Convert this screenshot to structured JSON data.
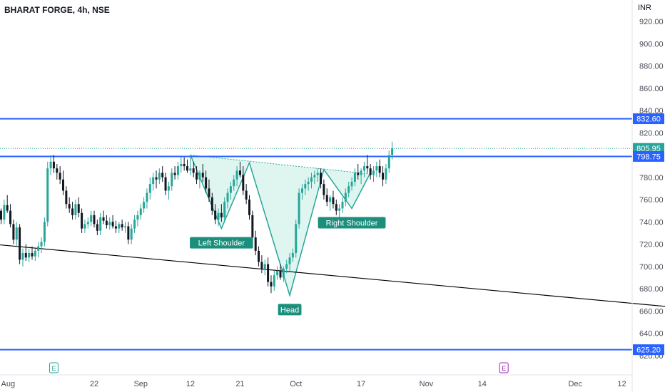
{
  "chart_title": "BHARAT FORGE, 4h, NSE",
  "currency_label": "INR",
  "colors": {
    "up": "#26a69a",
    "down": "#131722",
    "level_line": "#2962ff",
    "trend_line": "#000000",
    "pattern_fill": "#d4f1ea",
    "pattern_stroke": "#26a69a",
    "label_bg": "#1b8f7c"
  },
  "chart_data": {
    "type": "candlestick",
    "title": "BHARAT FORGE, 4h, NSE",
    "ylabel": "INR",
    "ylim": [
      610,
      928
    ],
    "y_ticks": [
      620,
      640,
      660,
      680,
      700,
      720,
      740,
      760,
      780,
      800,
      820,
      840,
      860,
      880,
      900,
      920
    ],
    "y_tick_labels": [
      "620.00",
      "640.00",
      "660.00",
      "680.00",
      "700.00",
      "720.00",
      "740.00",
      "760.00",
      "780.00",
      "800.00",
      "820.00",
      "840.00",
      "860.00",
      "880.00",
      "900.00",
      "920.00"
    ],
    "x_ticks": [
      {
        "label": "Aug",
        "bar": 0
      },
      {
        "label": "22",
        "bar": 30
      },
      {
        "label": "Sep",
        "bar": 45
      },
      {
        "label": "12",
        "bar": 61
      },
      {
        "label": "21",
        "bar": 77
      },
      {
        "label": "Oct",
        "bar": 95
      },
      {
        "label": "17",
        "bar": 116
      },
      {
        "label": "Nov",
        "bar": 137
      },
      {
        "label": "14",
        "bar": 155
      },
      {
        "label": "Dec",
        "bar": 185
      },
      {
        "label": "12",
        "bar": 200
      }
    ],
    "candles": [
      [
        750,
        752,
        738,
        742
      ],
      [
        742,
        760,
        738,
        755
      ],
      [
        755,
        764,
        748,
        750
      ],
      [
        750,
        756,
        735,
        738
      ],
      [
        738,
        742,
        720,
        724
      ],
      [
        724,
        740,
        718,
        735
      ],
      [
        735,
        738,
        702,
        706
      ],
      [
        706,
        716,
        700,
        712
      ],
      [
        712,
        720,
        705,
        708
      ],
      [
        708,
        716,
        704,
        712
      ],
      [
        712,
        718,
        706,
        709
      ],
      [
        709,
        716,
        705,
        714
      ],
      [
        714,
        722,
        708,
        718
      ],
      [
        718,
        726,
        712,
        722
      ],
      [
        722,
        744,
        718,
        740
      ],
      [
        740,
        794,
        736,
        788
      ],
      [
        788,
        800,
        782,
        794
      ],
      [
        794,
        800,
        784,
        788
      ],
      [
        788,
        792,
        778,
        784
      ],
      [
        784,
        790,
        774,
        778
      ],
      [
        778,
        786,
        764,
        768
      ],
      [
        768,
        772,
        752,
        756
      ],
      [
        756,
        762,
        748,
        752
      ],
      [
        752,
        758,
        742,
        746
      ],
      [
        746,
        760,
        742,
        756
      ],
      [
        756,
        762,
        744,
        748
      ],
      [
        748,
        752,
        730,
        734
      ],
      [
        734,
        742,
        730,
        738
      ],
      [
        738,
        744,
        734,
        740
      ],
      [
        740,
        750,
        736,
        746
      ],
      [
        746,
        750,
        735,
        738
      ],
      [
        738,
        742,
        728,
        732
      ],
      [
        732,
        748,
        728,
        744
      ],
      [
        744,
        750,
        738,
        741
      ],
      [
        741,
        746,
        734,
        737
      ],
      [
        737,
        744,
        733,
        740
      ],
      [
        740,
        746,
        734,
        736
      ],
      [
        736,
        741,
        730,
        734
      ],
      [
        734,
        740,
        730,
        738
      ],
      [
        738,
        742,
        732,
        735
      ],
      [
        735,
        740,
        730,
        736
      ],
      [
        736,
        740,
        720,
        724
      ],
      [
        724,
        738,
        720,
        734
      ],
      [
        734,
        746,
        730,
        742
      ],
      [
        742,
        750,
        736,
        746
      ],
      [
        746,
        756,
        742,
        752
      ],
      [
        752,
        762,
        748,
        758
      ],
      [
        758,
        770,
        752,
        766
      ],
      [
        766,
        780,
        760,
        774
      ],
      [
        774,
        784,
        768,
        780
      ],
      [
        780,
        786,
        770,
        778
      ],
      [
        778,
        788,
        774,
        784
      ],
      [
        784,
        790,
        776,
        780
      ],
      [
        780,
        784,
        764,
        768
      ],
      [
        768,
        776,
        760,
        772
      ],
      [
        772,
        788,
        768,
        784
      ],
      [
        784,
        790,
        778,
        782
      ],
      [
        782,
        794,
        778,
        790
      ],
      [
        790,
        798,
        784,
        792
      ],
      [
        792,
        798,
        786,
        790
      ],
      [
        790,
        796,
        784,
        786
      ],
      [
        786,
        800,
        782,
        788
      ],
      [
        788,
        794,
        780,
        784
      ],
      [
        784,
        790,
        774,
        778
      ],
      [
        778,
        786,
        770,
        784
      ],
      [
        784,
        792,
        776,
        780
      ],
      [
        780,
        786,
        766,
        770
      ],
      [
        770,
        778,
        758,
        762
      ],
      [
        762,
        766,
        746,
        750
      ],
      [
        750,
        756,
        738,
        742
      ],
      [
        742,
        752,
        736,
        748
      ],
      [
        748,
        756,
        740,
        744
      ],
      [
        744,
        762,
        740,
        758
      ],
      [
        758,
        770,
        752,
        766
      ],
      [
        766,
        776,
        760,
        772
      ],
      [
        772,
        782,
        768,
        778
      ],
      [
        778,
        790,
        772,
        786
      ],
      [
        786,
        794,
        780,
        782
      ],
      [
        782,
        790,
        764,
        768
      ],
      [
        768,
        774,
        756,
        760
      ],
      [
        760,
        764,
        742,
        746
      ],
      [
        746,
        750,
        722,
        726
      ],
      [
        726,
        732,
        710,
        714
      ],
      [
        714,
        718,
        700,
        704
      ],
      [
        704,
        710,
        694,
        698
      ],
      [
        698,
        706,
        692,
        702
      ],
      [
        702,
        708,
        682,
        686
      ],
      [
        686,
        692,
        676,
        682
      ],
      [
        682,
        696,
        678,
        692
      ],
      [
        692,
        700,
        688,
        696
      ],
      [
        696,
        702,
        688,
        690
      ],
      [
        690,
        700,
        686,
        698
      ],
      [
        698,
        706,
        694,
        702
      ],
      [
        702,
        712,
        696,
        708
      ],
      [
        708,
        716,
        704,
        712
      ],
      [
        712,
        742,
        708,
        738
      ],
      [
        738,
        770,
        734,
        766
      ],
      [
        766,
        774,
        760,
        770
      ],
      [
        770,
        778,
        764,
        774
      ],
      [
        774,
        780,
        768,
        776
      ],
      [
        776,
        784,
        770,
        780
      ],
      [
        780,
        786,
        774,
        782
      ],
      [
        782,
        788,
        776,
        784
      ],
      [
        784,
        788,
        770,
        774
      ],
      [
        774,
        778,
        760,
        764
      ],
      [
        764,
        770,
        754,
        758
      ],
      [
        758,
        764,
        750,
        762
      ],
      [
        762,
        768,
        752,
        756
      ],
      [
        756,
        760,
        746,
        750
      ],
      [
        750,
        756,
        744,
        752
      ],
      [
        752,
        762,
        748,
        758
      ],
      [
        758,
        770,
        754,
        766
      ],
      [
        766,
        776,
        762,
        772
      ],
      [
        772,
        780,
        768,
        776
      ],
      [
        776,
        788,
        772,
        784
      ],
      [
        784,
        792,
        778,
        782
      ],
      [
        782,
        788,
        774,
        786
      ],
      [
        786,
        794,
        780,
        790
      ],
      [
        790,
        800,
        784,
        788
      ],
      [
        788,
        792,
        778,
        782
      ],
      [
        782,
        790,
        776,
        786
      ],
      [
        786,
        794,
        780,
        790
      ],
      [
        790,
        796,
        780,
        784
      ],
      [
        784,
        790,
        772,
        778
      ],
      [
        778,
        792,
        774,
        788
      ],
      [
        788,
        804,
        784,
        800
      ],
      [
        800,
        812,
        796,
        806
      ]
    ],
    "price_labels": [
      {
        "value": 832.6,
        "label": "832.60"
      },
      {
        "value": 805.95,
        "label": "805.95"
      },
      {
        "value": 798.75,
        "label": "798.75"
      },
      {
        "value": 625.2,
        "label": "625.20"
      }
    ],
    "horizontal_levels": [
      832.6,
      798.75,
      625.2
    ],
    "current_price": 805.95,
    "trend_line": {
      "from": {
        "bar": -3,
        "value": 720
      },
      "to": {
        "bar": 226,
        "value": 661
      }
    },
    "pattern": {
      "name": "Head and Shoulders",
      "points": [
        {
          "bar": 61,
          "value": 800
        },
        {
          "bar": 71,
          "value": 734
        },
        {
          "bar": 80,
          "value": 793
        },
        {
          "bar": 93,
          "value": 674
        },
        {
          "bar": 104,
          "value": 787
        },
        {
          "bar": 113,
          "value": 752
        },
        {
          "bar": 119,
          "value": 784
        }
      ],
      "neckline": {
        "from": {
          "bar": 61,
          "value": 800
        },
        "to": {
          "bar": 119,
          "value": 783
        }
      }
    },
    "annotations": [
      {
        "text": "Left Shoulder",
        "bar": 71,
        "value": 734,
        "position": "below"
      },
      {
        "text": "Head",
        "bar": 93,
        "value": 674,
        "position": "below"
      },
      {
        "text": "Right Shoulder",
        "bar": 113,
        "value": 752,
        "position": "below"
      }
    ],
    "event_markers": [
      {
        "symbol": "E",
        "bar": 17,
        "color": "#26a69a"
      },
      {
        "symbol": "E",
        "bar": 162,
        "color": "#9c27b0"
      }
    ]
  }
}
